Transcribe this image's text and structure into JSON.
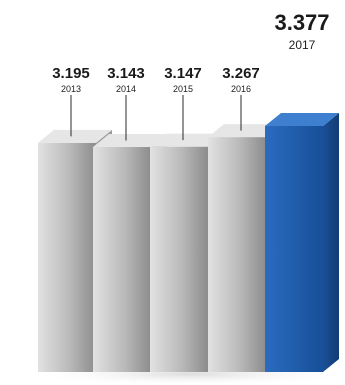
{
  "chart_data": {
    "type": "bar",
    "categories": [
      "2013",
      "2014",
      "2015",
      "2016",
      "2017"
    ],
    "values": [
      3.195,
      3.143,
      3.147,
      3.267,
      3.377
    ],
    "value_labels": [
      "3.195",
      "3.143",
      "3.147",
      "3.267",
      "3.377"
    ],
    "highlight_index": 4,
    "colors": {
      "bar_front": "#b5b5b5",
      "bar_side": "#8f8f8f",
      "bar_top": "#e6e6e6",
      "highlight_front": "#1f5fb0",
      "highlight_side": "#16468a",
      "highlight_top": "#3f7fd0"
    },
    "title": "",
    "xlabel": "",
    "ylabel": "",
    "grid": false,
    "legend": "none"
  }
}
